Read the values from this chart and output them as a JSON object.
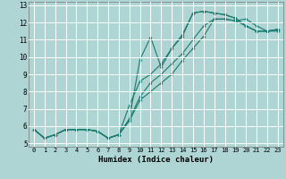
{
  "xlabel": "Humidex (Indice chaleur)",
  "background_color": "#aed4d4",
  "grid_color": "#ffffff",
  "line_color": "#1a7a6e",
  "xlim": [
    -0.5,
    23.5
  ],
  "ylim": [
    4.8,
    13.2
  ],
  "yticks": [
    5,
    6,
    7,
    8,
    9,
    10,
    11,
    12,
    13
  ],
  "xticks": [
    0,
    1,
    2,
    3,
    4,
    5,
    6,
    7,
    8,
    9,
    10,
    11,
    12,
    13,
    14,
    15,
    16,
    17,
    18,
    19,
    20,
    21,
    22,
    23
  ],
  "lines": [
    [
      5.8,
      5.3,
      5.5,
      5.8,
      5.8,
      5.8,
      5.7,
      5.3,
      5.5,
      6.3,
      7.5,
      8.0,
      8.5,
      9.0,
      9.8,
      10.5,
      11.2,
      12.2,
      12.2,
      12.1,
      11.8,
      11.5,
      11.5,
      11.6
    ],
    [
      5.8,
      5.3,
      5.5,
      5.8,
      5.8,
      5.8,
      5.7,
      5.3,
      5.5,
      6.4,
      7.7,
      8.5,
      9.0,
      9.6,
      10.2,
      11.0,
      11.8,
      12.2,
      12.2,
      12.1,
      12.2,
      11.8,
      11.5,
      11.5
    ],
    [
      5.8,
      5.3,
      5.5,
      5.8,
      5.8,
      5.8,
      5.7,
      5.3,
      5.5,
      7.2,
      8.6,
      9.0,
      9.6,
      10.5,
      11.3,
      12.55,
      12.65,
      12.55,
      12.45,
      12.25,
      11.8,
      11.5,
      11.5,
      11.6
    ],
    [
      5.8,
      5.3,
      5.5,
      5.8,
      5.8,
      5.8,
      5.7,
      5.3,
      5.5,
      6.4,
      9.85,
      11.15,
      9.4,
      10.5,
      11.2,
      12.55,
      12.65,
      12.55,
      12.45,
      12.25,
      11.8,
      11.5,
      11.5,
      11.6
    ]
  ]
}
